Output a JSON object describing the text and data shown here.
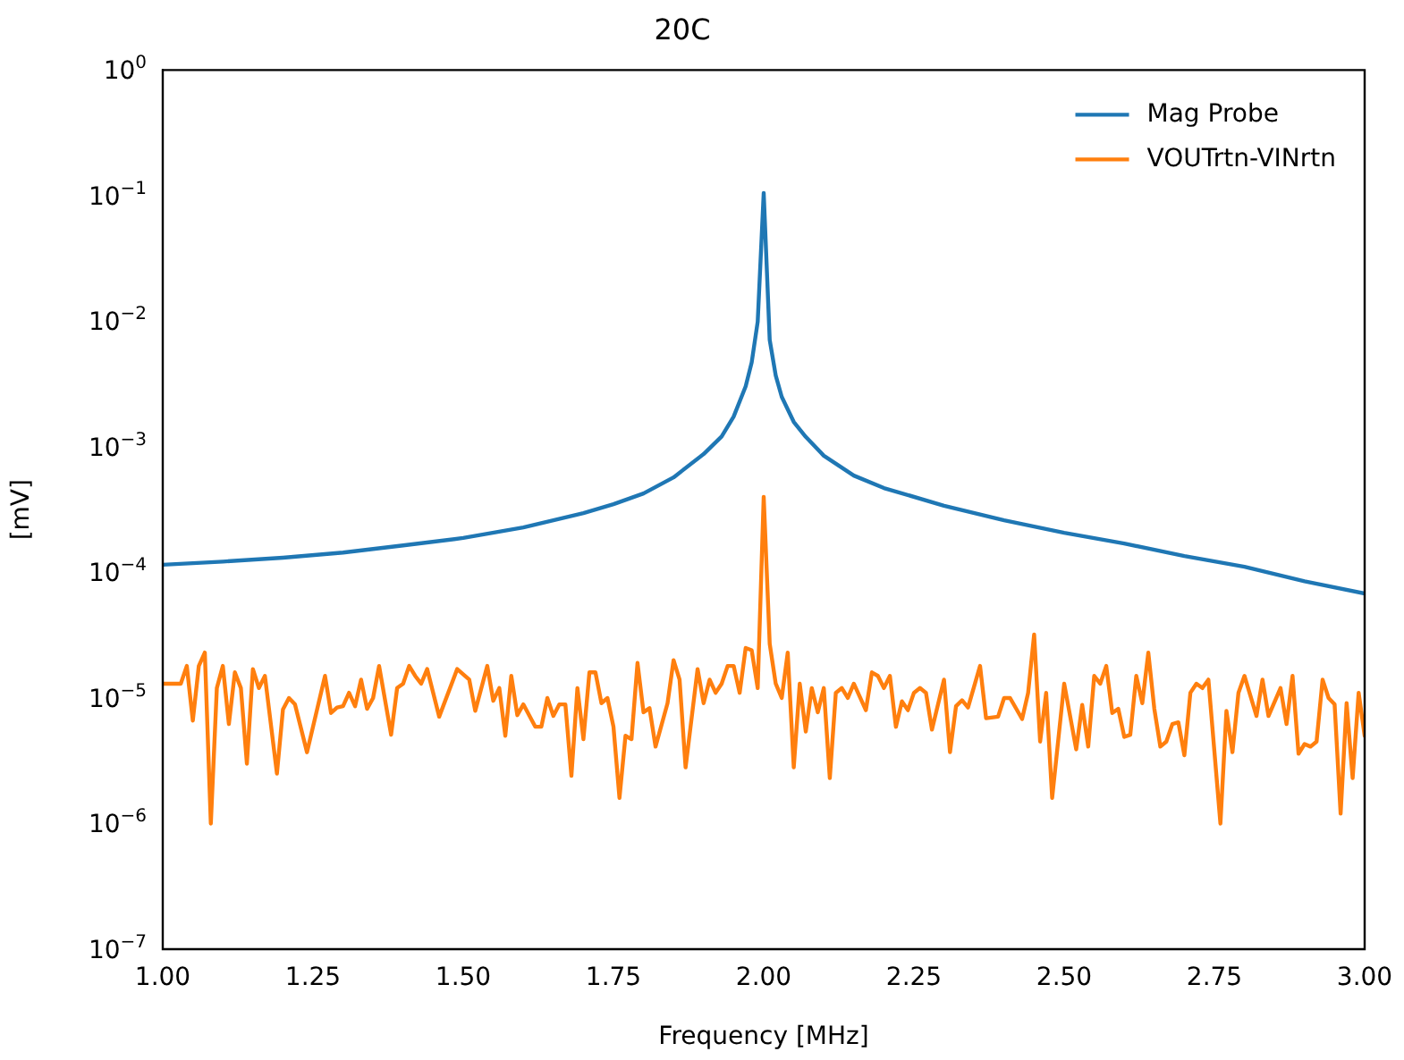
{
  "chart_data": {
    "type": "line",
    "title": "20C",
    "xlabel": "Frequency [MHz]",
    "ylabel": "[mV]",
    "log": "y",
    "grid": false,
    "legend": "top right",
    "marker": "none",
    "line_style": "solid",
    "xlim": [
      1.0,
      3.0
    ],
    "xticks": [
      {
        "value": 1.0,
        "label": "1.00"
      },
      {
        "value": 1.25,
        "label": "1.25"
      },
      {
        "value": 1.5,
        "label": "1.50"
      },
      {
        "value": 1.75,
        "label": "1.75"
      },
      {
        "value": 2.0,
        "label": "2.00"
      },
      {
        "value": 2.25,
        "label": "2.25"
      },
      {
        "value": 2.5,
        "label": "2.50"
      },
      {
        "value": 2.75,
        "label": "2.75"
      },
      {
        "value": 3.0,
        "label": "3.00"
      }
    ],
    "ylim": [
      1e-07,
      1
    ],
    "yticks": [
      {
        "value": 1e-07,
        "label": "10$^{−7}$"
      },
      {
        "value": 1e-06,
        "label": "10$^{−6}$"
      },
      {
        "value": 1e-05,
        "label": "10$^{−5}$"
      },
      {
        "value": 0.0001,
        "label": "10$^{−4}$"
      },
      {
        "value": 0.001,
        "label": "10$^{−3}$"
      },
      {
        "value": 0.01,
        "label": "10$^{−2}$"
      },
      {
        "value": 0.1,
        "label": "10$^{−1}$"
      },
      {
        "value": 1,
        "label": "10$^{0}$"
      }
    ],
    "series": [
      {
        "name": "Mag Probe",
        "color": "#1f77b4",
        "x": [
          1.0,
          1.1,
          1.2,
          1.3,
          1.4,
          1.5,
          1.6,
          1.7,
          1.75,
          1.8,
          1.85,
          1.9,
          1.93,
          1.95,
          1.97,
          1.98,
          1.99,
          2.0,
          2.01,
          2.02,
          2.03,
          2.05,
          2.07,
          2.1,
          2.15,
          2.2,
          2.3,
          2.4,
          2.5,
          2.6,
          2.7,
          2.8,
          2.9,
          3.0
        ],
        "values": [
          0.000115,
          0.000122,
          0.000131,
          0.000144,
          0.000164,
          0.000188,
          0.000228,
          0.000297,
          0.000349,
          0.000425,
          0.000571,
          0.000875,
          0.00121,
          0.00174,
          0.00303,
          0.0047,
          0.0099,
          0.105,
          0.0071,
          0.0037,
          0.0025,
          0.00158,
          0.0012,
          0.00085,
          0.00059,
          0.00047,
          0.00034,
          0.00026,
          0.000207,
          0.00017,
          0.000135,
          0.000111,
          8.5e-05,
          6.8e-05
        ]
      },
      {
        "name": "VOUTrtn-VINrtn",
        "color": "#ff7f0e",
        "x": [
          1.0,
          1.02,
          1.03,
          1.04,
          1.05,
          1.06,
          1.07,
          1.08,
          1.09,
          1.1,
          1.11,
          1.12,
          1.13,
          1.14,
          1.15,
          1.16,
          1.17,
          1.19,
          1.2,
          1.21,
          1.22,
          1.24,
          1.27,
          1.28,
          1.29,
          1.3,
          1.31,
          1.32,
          1.33,
          1.34,
          1.35,
          1.36,
          1.38,
          1.39,
          1.4,
          1.41,
          1.42,
          1.43,
          1.44,
          1.46,
          1.49,
          1.51,
          1.52,
          1.54,
          1.55,
          1.56,
          1.57,
          1.58,
          1.59,
          1.6,
          1.62,
          1.63,
          1.64,
          1.65,
          1.66,
          1.67,
          1.68,
          1.69,
          1.7,
          1.71,
          1.72,
          1.73,
          1.74,
          1.75,
          1.76,
          1.77,
          1.78,
          1.79,
          1.8,
          1.81,
          1.82,
          1.84,
          1.85,
          1.86,
          1.87,
          1.89,
          1.9,
          1.91,
          1.92,
          1.93,
          1.94,
          1.95,
          1.96,
          1.97,
          1.98,
          1.99,
          2.0,
          2.01,
          2.02,
          2.03,
          2.04,
          2.05,
          2.06,
          2.07,
          2.08,
          2.09,
          2.1,
          2.11,
          2.12,
          2.13,
          2.14,
          2.15,
          2.17,
          2.18,
          2.19,
          2.2,
          2.21,
          2.22,
          2.23,
          2.24,
          2.25,
          2.26,
          2.27,
          2.28,
          2.3,
          2.31,
          2.32,
          2.33,
          2.34,
          2.36,
          2.37,
          2.39,
          2.4,
          2.41,
          2.43,
          2.44,
          2.45,
          2.46,
          2.47,
          2.48,
          2.5,
          2.52,
          2.53,
          2.54,
          2.55,
          2.56,
          2.57,
          2.58,
          2.59,
          2.6,
          2.61,
          2.62,
          2.63,
          2.64,
          2.65,
          2.66,
          2.67,
          2.68,
          2.69,
          2.7,
          2.71,
          2.72,
          2.73,
          2.74,
          2.76,
          2.77,
          2.78,
          2.79,
          2.8,
          2.82,
          2.83,
          2.84,
          2.86,
          2.87,
          2.88,
          2.89,
          2.9,
          2.91,
          2.92,
          2.93,
          2.94,
          2.95,
          2.96,
          2.97,
          2.98,
          2.99,
          3.0
        ],
        "values": [
          1.3e-05,
          1.3e-05,
          1.3e-05,
          1.8e-05,
          6.6e-06,
          1.8e-05,
          2.3e-05,
          1e-06,
          1.2e-05,
          1.8e-05,
          6.2e-06,
          1.6e-05,
          1.2e-05,
          3e-06,
          1.7e-05,
          1.2e-05,
          1.5e-05,
          2.5e-06,
          8.1e-06,
          1e-05,
          8.9e-06,
          3.7e-06,
          1.5e-05,
          7.6e-06,
          8.4e-06,
          8.6e-06,
          1.1e-05,
          8.6e-06,
          1.4e-05,
          8.2e-06,
          1e-05,
          1.8e-05,
          5.1e-06,
          1.2e-05,
          1.3e-05,
          1.8e-05,
          1.5e-05,
          1.3e-05,
          1.7e-05,
          7.1e-06,
          1.7e-05,
          1.4e-05,
          7.9e-06,
          1.8e-05,
          9.5e-06,
          1.2e-05,
          5e-06,
          1.5e-05,
          7.3e-06,
          8.9e-06,
          5.9e-06,
          5.9e-06,
          1e-05,
          7.2e-06,
          8.9e-06,
          8.9e-06,
          2.4e-06,
          1.2e-05,
          4.7e-06,
          1.6e-05,
          1.6e-05,
          9.1e-06,
          1e-05,
          5.9e-06,
          1.6e-06,
          5e-06,
          4.7e-06,
          1.9e-05,
          7.7e-06,
          8.3e-06,
          4.1e-06,
          9.1e-06,
          2e-05,
          1.4e-05,
          2.8e-06,
          1.7e-05,
          9.1e-06,
          1.4e-05,
          1.1e-05,
          1.3e-05,
          1.8e-05,
          1.8e-05,
          1.1e-05,
          2.5e-05,
          2.4e-05,
          1.2e-05,
          0.0004,
          2.7e-05,
          1.3e-05,
          1e-05,
          2.3e-05,
          2.8e-06,
          1.3e-05,
          5.4e-06,
          1.2e-05,
          7.7e-06,
          1.2e-05,
          2.3e-06,
          1.1e-05,
          1.2e-05,
          1e-05,
          1.3e-05,
          8e-06,
          1.6e-05,
          1.5e-05,
          1.2e-05,
          1.5e-05,
          5.9e-06,
          9.4e-06,
          8e-06,
          1.1e-05,
          1.2e-05,
          1.1e-05,
          5.6e-06,
          1.4e-05,
          3.7e-06,
          8.6e-06,
          9.6e-06,
          8.4e-06,
          1.8e-05,
          6.9e-06,
          7.1e-06,
          1e-05,
          1e-05,
          6.8e-06,
          1.1e-05,
          3.2e-05,
          4.5e-06,
          1.1e-05,
          1.6e-06,
          1.3e-05,
          3.9e-06,
          8.8e-06,
          4.1e-06,
          1.5e-05,
          1.3e-05,
          1.8e-05,
          7.6e-06,
          8.2e-06,
          4.9e-06,
          5.1e-06,
          1.5e-05,
          9.1e-06,
          2.3e-05,
          8.2e-06,
          4.1e-06,
          4.5e-06,
          6.2e-06,
          6.4e-06,
          3.5e-06,
          1.1e-05,
          1.3e-05,
          1.2e-05,
          1.4e-05,
          1e-06,
          7.9e-06,
          3.7e-06,
          1.1e-05,
          1.5e-05,
          7.2e-06,
          1.4e-05,
          7.2e-06,
          1.2e-05,
          6.2e-06,
          1.5e-05,
          3.6e-06,
          4.3e-06,
          4.1e-06,
          4.5e-06,
          1.4e-05,
          1e-05,
          8.9e-06,
          1.2e-06,
          9.1e-06,
          2.3e-06,
          1.1e-05,
          5e-06
        ]
      }
    ]
  }
}
